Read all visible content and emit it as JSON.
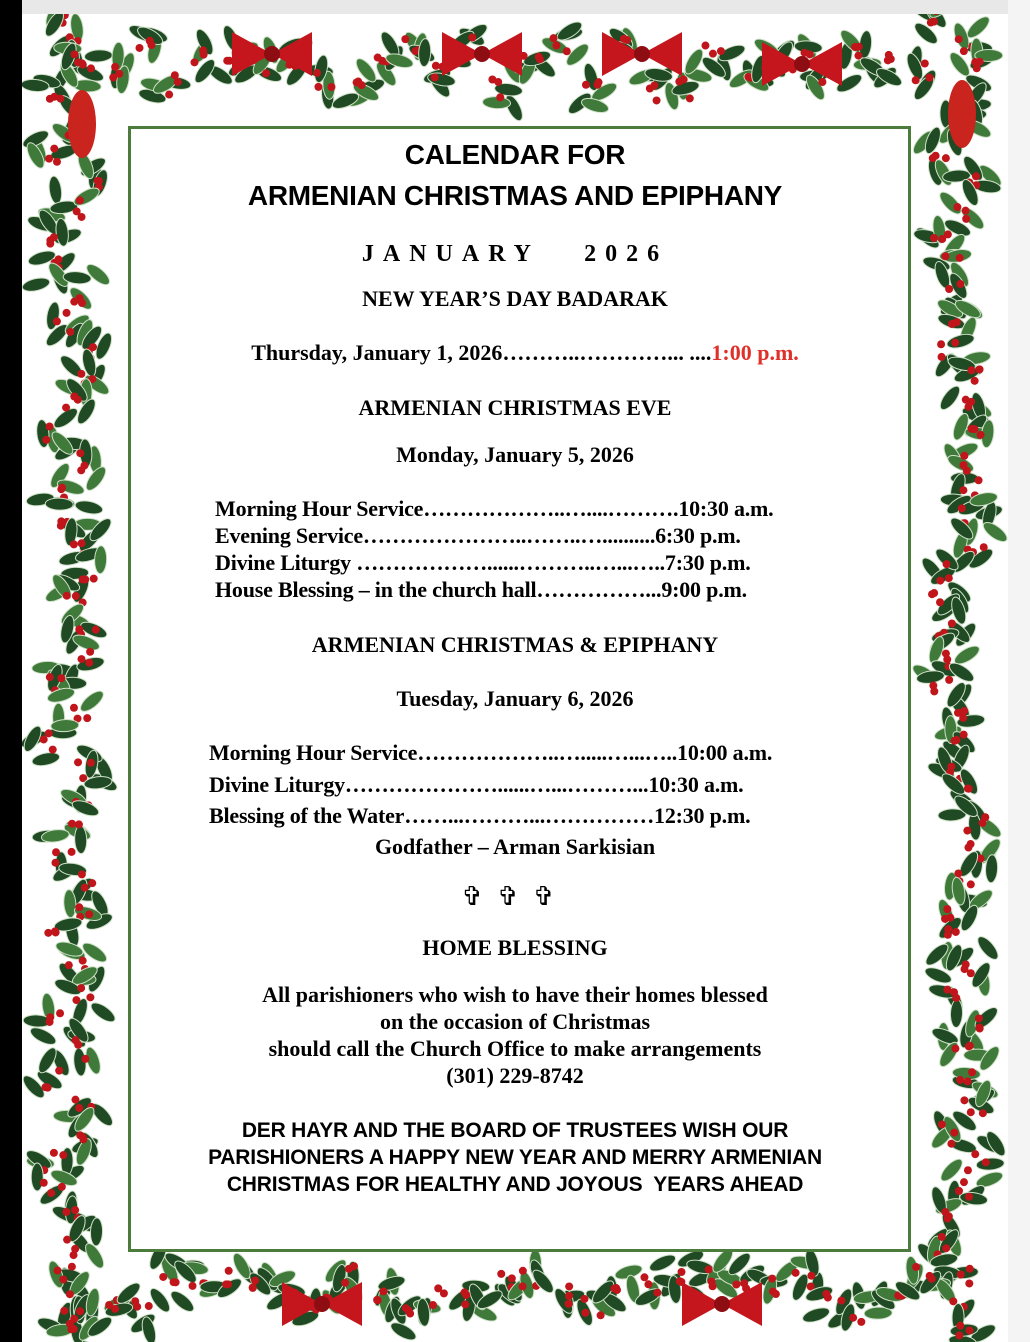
{
  "title": [
    "CALENDAR FOR",
    "ARMENIAN CHRISTMAS AND EPIPHANY"
  ],
  "month": "JANUARY   2026",
  "new_year": {
    "heading": "NEW YEAR’S DAY BADARAK",
    "date_line": "Thursday, January 1, 2026………..…………... ....",
    "time": "1:00 p.m."
  },
  "christmas_eve": {
    "heading": "ARMENIAN CHRISTMAS EVE",
    "date": "Monday, January 5, 2026",
    "items": [
      "Morning Hour Service………………..…....……….10:30 a.m.",
      "Evening Service…………………..……..…..........6:30 p.m.",
      "Divine Liturgy ………………......………..…...…..7:30 p.m.",
      "House Blessing – in the church hall……………...9:00 p.m."
    ]
  },
  "christmas_day": {
    "heading": "ARMENIAN CHRISTMAS & EPIPHANY",
    "date": "Tuesday, January 6, 2026",
    "items": [
      "Morning Hour Service………………..….....…...…..10:00 a.m.",
      "Divine Liturgy…………………......…...………...10:30 a.m.",
      "Blessing of the Water……...………...……………12:30 p.m."
    ],
    "godfather": "Godfather – Arman Sarkisian"
  },
  "crosses": "✞✞✞",
  "home_blessing": {
    "heading": "HOME BLESSING",
    "lines": [
      "All parishioners who wish to have their homes blessed",
      "on the occasion of Christmas",
      "should call the Church Office to make arrangements",
      "(301) 229-8742"
    ]
  },
  "closing": [
    "DER HAYR AND THE BOARD OF TRUSTEES WISH OUR",
    "PARISHIONERS A HAPPY NEW YEAR AND MERRY ARMENIAN",
    "CHRISTMAS FOR HEALTHY AND JOYOUS  YEARS AHEAD"
  ],
  "colors": {
    "frame_green": "#4c7c3c",
    "accent_red": "#e0302a",
    "holly_green": "#1f4a23",
    "berry_red": "#c0161b"
  }
}
